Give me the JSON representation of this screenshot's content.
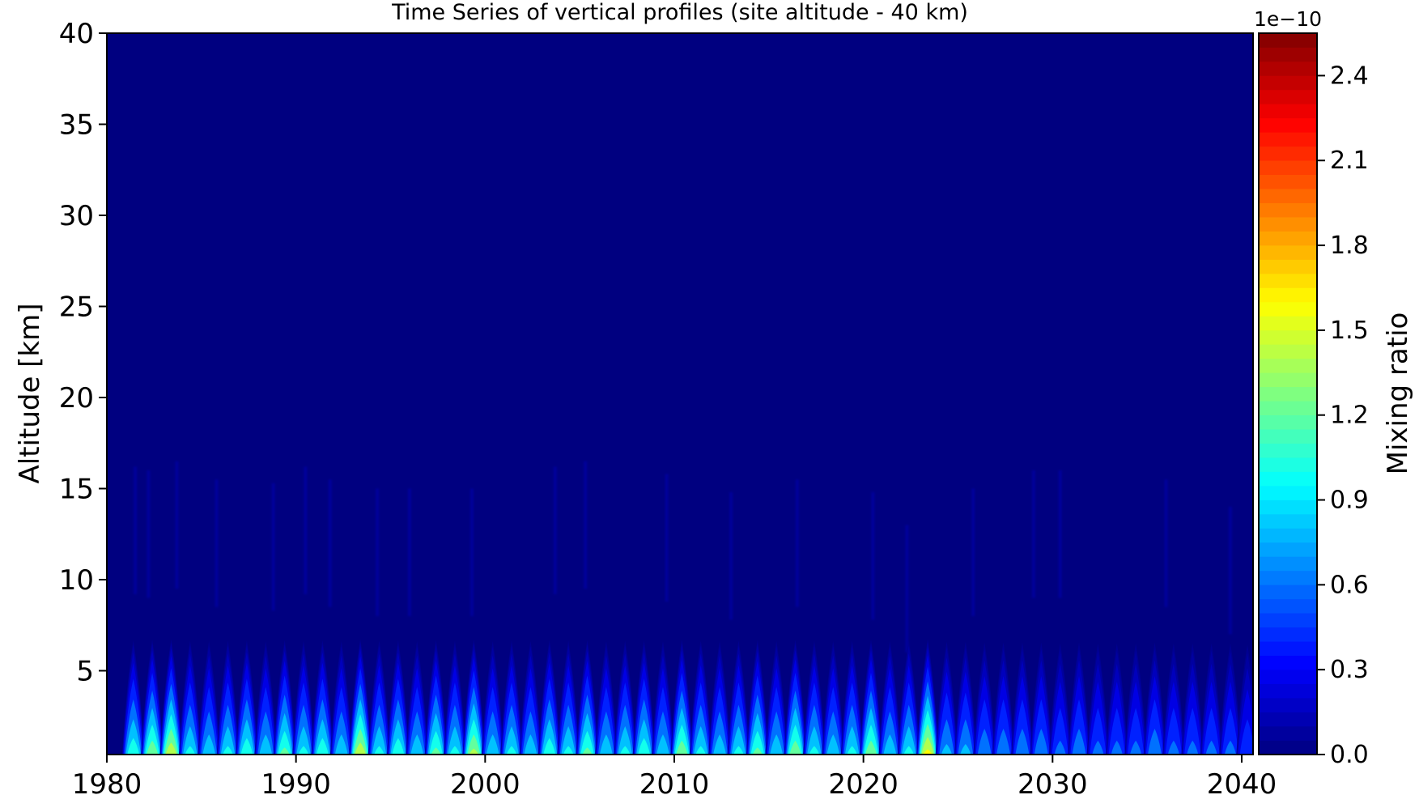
{
  "chart_data": {
    "type": "heatmap",
    "title": "Time Series of vertical profiles (site altitude - 40 km)",
    "xlabel": "",
    "ylabel": "Altitude [km]",
    "xlim": [
      1980,
      2040.6
    ],
    "ylim": [
      0.4,
      40
    ],
    "xticks": [
      1980,
      1990,
      2000,
      2010,
      2020,
      2030,
      2040
    ],
    "yticks": [
      5,
      10,
      15,
      20,
      25,
      30,
      35,
      40
    ],
    "colorbar": {
      "label": "Mixing ratio",
      "offset_text": "1e−10",
      "range": [
        0.0,
        2.55
      ],
      "ticks": [
        0.0,
        0.3,
        0.6,
        0.9,
        1.2,
        1.5,
        1.8,
        2.1,
        2.4
      ],
      "tick_labels": [
        "0.0",
        "0.3",
        "0.6",
        "0.9",
        "1.2",
        "1.5",
        "1.8",
        "2.1",
        "2.4"
      ],
      "colormap": "jet"
    },
    "background_value": 0.0,
    "surface_peaks": [
      {
        "year": 1981.4,
        "peak": 1.2
      },
      {
        "year": 1982.4,
        "peak": 1.4
      },
      {
        "year": 1983.4,
        "peak": 1.6
      },
      {
        "year": 1984.4,
        "peak": 1.1
      },
      {
        "year": 1985.4,
        "peak": 1.0
      },
      {
        "year": 1986.4,
        "peak": 1.1
      },
      {
        "year": 1987.4,
        "peak": 1.2
      },
      {
        "year": 1988.4,
        "peak": 1.0
      },
      {
        "year": 1989.4,
        "peak": 1.3
      },
      {
        "year": 1990.4,
        "peak": 1.1
      },
      {
        "year": 1991.4,
        "peak": 1.2
      },
      {
        "year": 1992.4,
        "peak": 1.0
      },
      {
        "year": 1993.4,
        "peak": 1.6
      },
      {
        "year": 1994.4,
        "peak": 1.1
      },
      {
        "year": 1995.4,
        "peak": 1.2
      },
      {
        "year": 1996.4,
        "peak": 1.0
      },
      {
        "year": 1997.4,
        "peak": 1.3
      },
      {
        "year": 1998.4,
        "peak": 1.1
      },
      {
        "year": 1999.4,
        "peak": 1.5
      },
      {
        "year": 2000.4,
        "peak": 1.0
      },
      {
        "year": 2001.4,
        "peak": 1.1
      },
      {
        "year": 2002.4,
        "peak": 1.0
      },
      {
        "year": 2003.4,
        "peak": 1.2
      },
      {
        "year": 2004.4,
        "peak": 1.1
      },
      {
        "year": 2005.4,
        "peak": 1.3
      },
      {
        "year": 2006.4,
        "peak": 1.0
      },
      {
        "year": 2007.4,
        "peak": 1.1
      },
      {
        "year": 2008.4,
        "peak": 1.2
      },
      {
        "year": 2009.4,
        "peak": 1.0
      },
      {
        "year": 2010.4,
        "peak": 1.4
      },
      {
        "year": 2011.4,
        "peak": 1.1
      },
      {
        "year": 2012.4,
        "peak": 1.0
      },
      {
        "year": 2013.4,
        "peak": 1.1
      },
      {
        "year": 2014.4,
        "peak": 1.3
      },
      {
        "year": 2015.4,
        "peak": 1.0
      },
      {
        "year": 2016.4,
        "peak": 1.4
      },
      {
        "year": 2017.4,
        "peak": 1.1
      },
      {
        "year": 2018.4,
        "peak": 1.0
      },
      {
        "year": 2019.4,
        "peak": 1.1
      },
      {
        "year": 2020.4,
        "peak": 1.4
      },
      {
        "year": 2021.4,
        "peak": 1.0
      },
      {
        "year": 2022.4,
        "peak": 1.1
      },
      {
        "year": 2023.4,
        "peak": 1.7
      },
      {
        "year": 2024.4,
        "peak": 0.9
      },
      {
        "year": 2025.4,
        "peak": 0.9
      },
      {
        "year": 2026.4,
        "peak": 0.8
      },
      {
        "year": 2027.4,
        "peak": 0.8
      },
      {
        "year": 2028.4,
        "peak": 0.8
      },
      {
        "year": 2029.4,
        "peak": 0.8
      },
      {
        "year": 2030.4,
        "peak": 0.7
      },
      {
        "year": 2031.4,
        "peak": 0.8
      },
      {
        "year": 2032.4,
        "peak": 0.7
      },
      {
        "year": 2033.4,
        "peak": 0.7
      },
      {
        "year": 2034.4,
        "peak": 0.7
      },
      {
        "year": 2035.4,
        "peak": 0.8
      },
      {
        "year": 2036.4,
        "peak": 0.7
      },
      {
        "year": 2037.4,
        "peak": 0.7
      },
      {
        "year": 2038.4,
        "peak": 0.7
      },
      {
        "year": 2039.4,
        "peak": 0.7
      },
      {
        "year": 2040.3,
        "peak": 0.6
      }
    ],
    "faint_streaks": [
      {
        "year": 1981.5,
        "alt_top": 16.2
      },
      {
        "year": 1982.2,
        "alt_top": 16.0
      },
      {
        "year": 1983.7,
        "alt_top": 16.5
      },
      {
        "year": 1985.8,
        "alt_top": 15.5
      },
      {
        "year": 1988.8,
        "alt_top": 15.3
      },
      {
        "year": 1990.5,
        "alt_top": 16.2
      },
      {
        "year": 1991.8,
        "alt_top": 15.5
      },
      {
        "year": 1994.3,
        "alt_top": 15.0
      },
      {
        "year": 1996.0,
        "alt_top": 15.0
      },
      {
        "year": 1999.3,
        "alt_top": 15.0
      },
      {
        "year": 2003.7,
        "alt_top": 16.2
      },
      {
        "year": 2005.3,
        "alt_top": 16.5
      },
      {
        "year": 2009.6,
        "alt_top": 15.8
      },
      {
        "year": 2013.0,
        "alt_top": 14.8
      },
      {
        "year": 2016.5,
        "alt_top": 15.5
      },
      {
        "year": 2020.5,
        "alt_top": 14.8
      },
      {
        "year": 2022.3,
        "alt_top": 13.0
      },
      {
        "year": 2025.8,
        "alt_top": 15.0
      },
      {
        "year": 2029.0,
        "alt_top": 16.0
      },
      {
        "year": 2030.4,
        "alt_top": 16.0
      },
      {
        "year": 2036.0,
        "alt_top": 15.5
      },
      {
        "year": 2039.4,
        "alt_top": 14.0
      }
    ],
    "colorbar_position": "right",
    "grid": false
  }
}
